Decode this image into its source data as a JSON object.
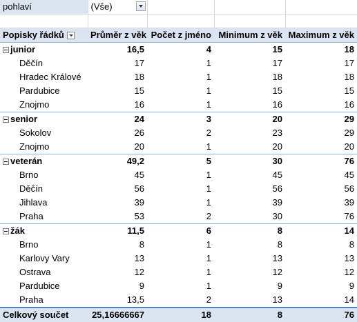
{
  "filter": {
    "field_label": "pohlaví",
    "value": "(Vše)"
  },
  "header": {
    "row_labels": "Popisky řádků",
    "col_avg": "Průměr z věk",
    "col_count": "Počet z jméno",
    "col_min": "Minimum z věk",
    "col_max": "Maximum z věk"
  },
  "groups": [
    {
      "name": "junior",
      "avg": "16,5",
      "count": "4",
      "min": "15",
      "max": "18",
      "rows": [
        {
          "name": "Děčín",
          "avg": "17",
          "count": "1",
          "min": "17",
          "max": "17"
        },
        {
          "name": "Hradec Králové",
          "avg": "18",
          "count": "1",
          "min": "18",
          "max": "18"
        },
        {
          "name": "Pardubice",
          "avg": "15",
          "count": "1",
          "min": "15",
          "max": "15"
        },
        {
          "name": "Znojmo",
          "avg": "16",
          "count": "1",
          "min": "16",
          "max": "16"
        }
      ]
    },
    {
      "name": "senior",
      "avg": "24",
      "count": "3",
      "min": "20",
      "max": "29",
      "rows": [
        {
          "name": "Sokolov",
          "avg": "26",
          "count": "2",
          "min": "23",
          "max": "29"
        },
        {
          "name": "Znojmo",
          "avg": "20",
          "count": "1",
          "min": "20",
          "max": "20"
        }
      ]
    },
    {
      "name": "veterán",
      "avg": "49,2",
      "count": "5",
      "min": "30",
      "max": "76",
      "rows": [
        {
          "name": "Brno",
          "avg": "45",
          "count": "1",
          "min": "45",
          "max": "45"
        },
        {
          "name": "Děčín",
          "avg": "56",
          "count": "1",
          "min": "56",
          "max": "56"
        },
        {
          "name": "Jihlava",
          "avg": "39",
          "count": "1",
          "min": "39",
          "max": "39"
        },
        {
          "name": "Praha",
          "avg": "53",
          "count": "2",
          "min": "30",
          "max": "76"
        }
      ]
    },
    {
      "name": "žák",
      "avg": "11,5",
      "count": "6",
      "min": "8",
      "max": "14",
      "rows": [
        {
          "name": "Brno",
          "avg": "8",
          "count": "1",
          "min": "8",
          "max": "8"
        },
        {
          "name": "Karlovy Vary",
          "avg": "13",
          "count": "1",
          "min": "13",
          "max": "13"
        },
        {
          "name": "Ostrava",
          "avg": "12",
          "count": "1",
          "min": "12",
          "max": "12"
        },
        {
          "name": "Pardubice",
          "avg": "9",
          "count": "1",
          "min": "9",
          "max": "9"
        },
        {
          "name": "Praha",
          "avg": "13,5",
          "count": "2",
          "min": "13",
          "max": "14"
        }
      ]
    }
  ],
  "total": {
    "label": "Celkový součet",
    "avg": "25,16666667",
    "count": "18",
    "min": "8",
    "max": "76"
  },
  "icons": {
    "filter_dropdown": "dropdown-arrow-icon",
    "row_filter": "filter-dropdown-icon",
    "collapse": "collapse-minus-icon"
  },
  "colors": {
    "header_fill": "#dbe5f1",
    "border_blue": "#95b3d7",
    "total_border": "#4f81bd"
  }
}
